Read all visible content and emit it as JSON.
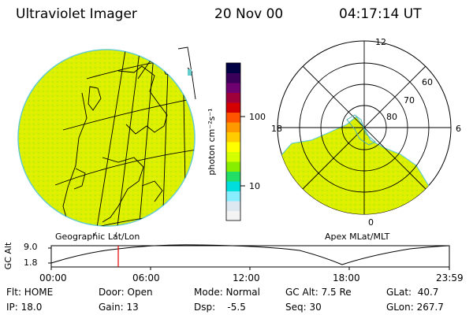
{
  "header": {
    "instrument": "Ultraviolet Imager",
    "date": "20 Nov 00",
    "time": "04:17:14 UT"
  },
  "colorbar": {
    "unit_label": "photon cm⁻²s⁻¹",
    "ticks": [
      "100",
      "10"
    ],
    "colors": [
      "#000044",
      "#3a005a",
      "#700070",
      "#a0003a",
      "#d40000",
      "#ff5500",
      "#ff9900",
      "#ffcc00",
      "#ffff00",
      "#d4ff00",
      "#88ee00",
      "#22dd66",
      "#00dddd",
      "#88eeff",
      "#dde8f0",
      "#f4f4f4"
    ]
  },
  "geo_panel": {
    "label": "Geographic Lat/Lon",
    "fill_color": "#ddf000"
  },
  "polar_panel": {
    "label": "Apex MLat/MLT",
    "mlt_labels": {
      "top": "12",
      "left": "18",
      "right": "6",
      "bottom": "0"
    },
    "lat_labels": [
      "60",
      "70",
      "80"
    ],
    "fill_color": "#ddf000"
  },
  "orbit_plot": {
    "ylabel": "GC Alt",
    "yticks": [
      "9.0",
      "1.8"
    ],
    "xticks": [
      "00:00",
      "06:00",
      "12:00",
      "18:00",
      "23:59"
    ],
    "marker_time": "04:17",
    "marker_color": "#e00000"
  },
  "info": {
    "flt": "Flt: HOME",
    "ip": "IP: 18.0",
    "door": "Door: Open",
    "gain": "Gain: 13",
    "mode": "Mode: Normal",
    "dsp": "Dsp:    -5.5",
    "gc_alt": "GC Alt: 7.5 Re",
    "seq": "Seq: 30",
    "glat": "GLat:  40.7",
    "glon": "GLon: 267.7"
  }
}
